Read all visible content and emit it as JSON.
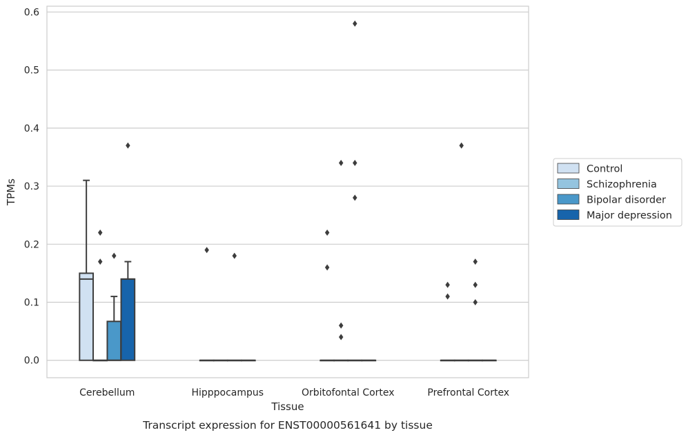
{
  "chart_data": {
    "type": "box",
    "caption": "Transcript expression for ENST00000561641 by tissue",
    "xlabel": "Tissue",
    "ylabel": "TPMs",
    "ylim": [
      -0.03,
      0.61
    ],
    "yticks": [
      "0.0",
      "0.1",
      "0.2",
      "0.3",
      "0.4",
      "0.5",
      "0.6"
    ],
    "grid": true,
    "legend_position": "right",
    "categories": [
      "Cerebellum",
      "Hipppocampus",
      "Orbitofontal Cortex",
      "Prefrontal Cortex"
    ],
    "series": [
      {
        "name": "Control",
        "color": "#d0e1f2",
        "boxes": [
          {
            "q1": 0.0,
            "median": 0.14,
            "q3": 0.15,
            "whisker_low": 0.0,
            "whisker_high": 0.31,
            "outliers": []
          },
          {
            "q1": 0.0,
            "median": 0.0,
            "q3": 0.0,
            "whisker_low": 0.0,
            "whisker_high": 0.0,
            "outliers": [
              0.19
            ]
          },
          {
            "q1": 0.0,
            "median": 0.0,
            "q3": 0.0,
            "whisker_low": 0.0,
            "whisker_high": 0.0,
            "outliers": [
              0.22,
              0.16
            ]
          },
          {
            "q1": 0.0,
            "median": 0.0,
            "q3": 0.0,
            "whisker_low": 0.0,
            "whisker_high": 0.0,
            "outliers": [
              0.13,
              0.11
            ]
          }
        ]
      },
      {
        "name": "Schizophrenia",
        "color": "#94c4df",
        "boxes": [
          {
            "q1": 0.0,
            "median": 0.0,
            "q3": 0.0,
            "whisker_low": 0.0,
            "whisker_high": 0.0,
            "outliers": [
              0.22,
              0.17
            ]
          },
          {
            "q1": 0.0,
            "median": 0.0,
            "q3": 0.0,
            "whisker_low": 0.0,
            "whisker_high": 0.0,
            "outliers": []
          },
          {
            "q1": 0.0,
            "median": 0.0,
            "q3": 0.0,
            "whisker_low": 0.0,
            "whisker_high": 0.0,
            "outliers": [
              0.34,
              0.06,
              0.04
            ]
          },
          {
            "q1": 0.0,
            "median": 0.0,
            "q3": 0.0,
            "whisker_low": 0.0,
            "whisker_high": 0.0,
            "outliers": [
              0.37
            ]
          }
        ]
      },
      {
        "name": "Bipolar disorder",
        "color": "#4a98c9",
        "boxes": [
          {
            "q1": 0.0,
            "median": 0.0,
            "q3": 0.067,
            "whisker_low": 0.0,
            "whisker_high": 0.11,
            "outliers": [
              0.18
            ]
          },
          {
            "q1": 0.0,
            "median": 0.0,
            "q3": 0.0,
            "whisker_low": 0.0,
            "whisker_high": 0.0,
            "outliers": [
              0.18
            ]
          },
          {
            "q1": 0.0,
            "median": 0.0,
            "q3": 0.0,
            "whisker_low": 0.0,
            "whisker_high": 0.0,
            "outliers": [
              0.58,
              0.34,
              0.28
            ]
          },
          {
            "q1": 0.0,
            "median": 0.0,
            "q3": 0.0,
            "whisker_low": 0.0,
            "whisker_high": 0.0,
            "outliers": [
              0.17,
              0.13,
              0.1
            ]
          }
        ]
      },
      {
        "name": "Major depression",
        "color": "#1764ab",
        "boxes": [
          {
            "q1": 0.0,
            "median": 0.14,
            "q3": 0.14,
            "whisker_low": 0.0,
            "whisker_high": 0.17,
            "outliers": [
              0.37
            ]
          },
          {
            "q1": 0.0,
            "median": 0.0,
            "q3": 0.0,
            "whisker_low": 0.0,
            "whisker_high": 0.0,
            "outliers": []
          },
          {
            "q1": 0.0,
            "median": 0.0,
            "q3": 0.0,
            "whisker_low": 0.0,
            "whisker_high": 0.0,
            "outliers": []
          },
          {
            "q1": 0.0,
            "median": 0.0,
            "q3": 0.0,
            "whisker_low": 0.0,
            "whisker_high": 0.0,
            "outliers": []
          }
        ]
      }
    ]
  }
}
